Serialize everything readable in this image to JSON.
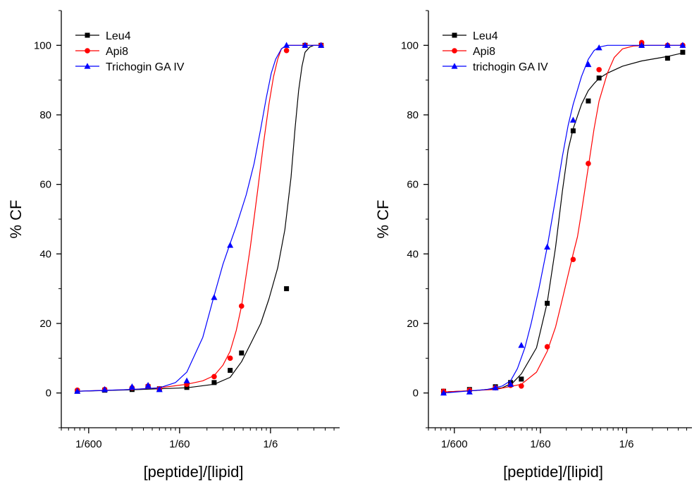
{
  "chart_data": [
    {
      "type": "scatter",
      "title": "",
      "xlabel": "[peptide]/[lipid]",
      "ylabel": "% CF",
      "x_scale": "log",
      "xlim": [
        0.000833,
        0.96
      ],
      "ylim": [
        -10,
        110
      ],
      "x_ticks": [
        {
          "value": 0.0016667,
          "label": "1/600"
        },
        {
          "value": 0.016667,
          "label": "1/60"
        },
        {
          "value": 0.16667,
          "label": "1/6"
        }
      ],
      "y_ticks": [
        0,
        20,
        40,
        60,
        80,
        100
      ],
      "legend": "top-left",
      "grid": false,
      "series": [
        {
          "name": "Leu4",
          "color": "#000000",
          "marker": "square",
          "x": [
            0.00125,
            0.0025,
            0.005,
            0.0075,
            0.01,
            0.02,
            0.04,
            0.06,
            0.08,
            0.25,
            0.4,
            0.6
          ],
          "y": [
            0.5,
            0.8,
            1.0,
            1.8,
            1.2,
            1.6,
            3.0,
            6.5,
            11.5,
            30.0,
            100.0,
            100.0
          ],
          "fit_x": [
            0.00125,
            0.005,
            0.01,
            0.02,
            0.04,
            0.06,
            0.08,
            0.1,
            0.13,
            0.16,
            0.2,
            0.24,
            0.28,
            0.31,
            0.34,
            0.37,
            0.4,
            0.45,
            0.5,
            0.6
          ],
          "fit_y": [
            0.5,
            0.9,
            1.2,
            1.5,
            2.5,
            4.5,
            9.0,
            14.0,
            20.0,
            27.0,
            36.0,
            47.0,
            62.0,
            76.0,
            87.0,
            94.0,
            98.0,
            99.5,
            100.0,
            100.0
          ]
        },
        {
          "name": "Api8",
          "color": "#ff0000",
          "marker": "circle",
          "x": [
            0.00125,
            0.0025,
            0.005,
            0.0075,
            0.01,
            0.02,
            0.04,
            0.06,
            0.08,
            0.25,
            0.4,
            0.6
          ],
          "y": [
            0.8,
            1.0,
            1.5,
            2.0,
            1.2,
            2.5,
            4.7,
            10.0,
            25.0,
            98.5,
            100.0,
            100.0
          ],
          "fit_x": [
            0.00125,
            0.005,
            0.01,
            0.02,
            0.03,
            0.04,
            0.05,
            0.06,
            0.07,
            0.08,
            0.1,
            0.12,
            0.14,
            0.16,
            0.18,
            0.2,
            0.22,
            0.25,
            0.3,
            0.6
          ],
          "fit_y": [
            0.5,
            1.0,
            1.5,
            2.5,
            3.5,
            5.0,
            8.0,
            12.0,
            18.0,
            25.0,
            42.0,
            58.0,
            72.0,
            83.0,
            91.0,
            96.0,
            99.0,
            100.0,
            100.0,
            100.0
          ]
        },
        {
          "name": "Trichogin GA IV",
          "color": "#0000ff",
          "marker": "triangle",
          "x": [
            0.00125,
            0.0025,
            0.005,
            0.0075,
            0.01,
            0.02,
            0.04,
            0.06,
            0.25,
            0.4,
            0.6
          ],
          "y": [
            0.5,
            1.0,
            1.8,
            2.2,
            1.0,
            3.5,
            27.5,
            42.5,
            100.0,
            100.0,
            100.0
          ],
          "fit_x": [
            0.00125,
            0.005,
            0.01,
            0.015,
            0.02,
            0.03,
            0.04,
            0.05,
            0.06,
            0.07,
            0.09,
            0.11,
            0.13,
            0.15,
            0.17,
            0.19,
            0.22,
            0.25,
            0.3,
            0.6
          ],
          "fit_y": [
            0.5,
            1.0,
            1.5,
            3.0,
            6.0,
            16.0,
            28.0,
            37.0,
            43.0,
            48.0,
            57.0,
            66.0,
            76.0,
            85.0,
            92.0,
            96.0,
            99.0,
            100.0,
            100.0,
            100.0
          ]
        }
      ]
    },
    {
      "type": "scatter",
      "title": "",
      "xlabel": "[peptide]/[lipid]",
      "ylabel": "% CF",
      "x_scale": "log",
      "xlim": [
        0.000833,
        0.96
      ],
      "ylim": [
        -10,
        110
      ],
      "x_ticks": [
        {
          "value": 0.0016667,
          "label": "1/600"
        },
        {
          "value": 0.016667,
          "label": "1/60"
        },
        {
          "value": 0.16667,
          "label": "1/6"
        }
      ],
      "y_ticks": [
        0,
        20,
        40,
        60,
        80,
        100
      ],
      "legend": "top-left",
      "grid": false,
      "series": [
        {
          "name": "Leu4",
          "color": "#000000",
          "marker": "square",
          "x": [
            0.00125,
            0.0025,
            0.005,
            0.0075,
            0.01,
            0.02,
            0.04,
            0.06,
            0.08,
            0.25,
            0.5,
            0.75
          ],
          "y": [
            0.5,
            1.0,
            1.8,
            3.0,
            4.0,
            25.8,
            75.4,
            84.0,
            90.6,
            100.0,
            96.3,
            98.0
          ],
          "fit_x": [
            0.00125,
            0.003,
            0.006,
            0.008,
            0.01,
            0.015,
            0.02,
            0.025,
            0.03,
            0.035,
            0.04,
            0.05,
            0.06,
            0.07,
            0.08,
            0.1,
            0.15,
            0.25,
            0.5,
            0.75
          ],
          "fit_y": [
            0.3,
            0.7,
            1.5,
            3.0,
            5.5,
            13.0,
            26.0,
            42.0,
            58.0,
            70.0,
            76.0,
            83.0,
            87.0,
            89.0,
            90.5,
            92.0,
            94.0,
            95.5,
            96.8,
            97.8
          ]
        },
        {
          "name": "Api8",
          "color": "#ff0000",
          "marker": "circle",
          "x": [
            0.00125,
            0.0025,
            0.005,
            0.0075,
            0.01,
            0.02,
            0.04,
            0.06,
            0.08,
            0.25,
            0.5,
            0.75
          ],
          "y": [
            0.5,
            0.8,
            1.5,
            2.2,
            2.0,
            13.3,
            38.4,
            66.0,
            93.0,
            100.8,
            100.0,
            100.0
          ],
          "fit_x": [
            0.00125,
            0.005,
            0.01,
            0.015,
            0.02,
            0.025,
            0.03,
            0.035,
            0.04,
            0.045,
            0.05,
            0.06,
            0.07,
            0.08,
            0.1,
            0.12,
            0.15,
            0.2,
            0.3,
            0.75
          ],
          "fit_y": [
            0.3,
            1.0,
            2.5,
            6.0,
            12.0,
            19.0,
            27.0,
            34.0,
            40.0,
            45.0,
            52.0,
            65.0,
            76.0,
            84.0,
            92.0,
            96.5,
            99.0,
            99.8,
            100.0,
            100.0
          ]
        },
        {
          "name": "trichogin GA IV",
          "color": "#0000ff",
          "marker": "triangle",
          "x": [
            0.00125,
            0.0025,
            0.005,
            0.0075,
            0.01,
            0.02,
            0.04,
            0.06,
            0.08,
            0.25,
            0.5,
            0.75
          ],
          "y": [
            0.0,
            0.3,
            1.5,
            2.5,
            13.7,
            42.0,
            78.5,
            94.5,
            99.3,
            100.0,
            100.0,
            100.0
          ],
          "fit_x": [
            0.00125,
            0.004,
            0.006,
            0.0075,
            0.009,
            0.011,
            0.013,
            0.016,
            0.02,
            0.025,
            0.03,
            0.035,
            0.04,
            0.05,
            0.06,
            0.07,
            0.08,
            0.1,
            0.2,
            0.75
          ],
          "fit_y": [
            0.0,
            1.0,
            2.0,
            3.5,
            7.0,
            13.0,
            20.0,
            30.0,
            42.0,
            56.0,
            68.0,
            77.0,
            83.0,
            91.0,
            96.0,
            98.5,
            99.5,
            100.0,
            100.0,
            100.0
          ]
        }
      ]
    }
  ]
}
